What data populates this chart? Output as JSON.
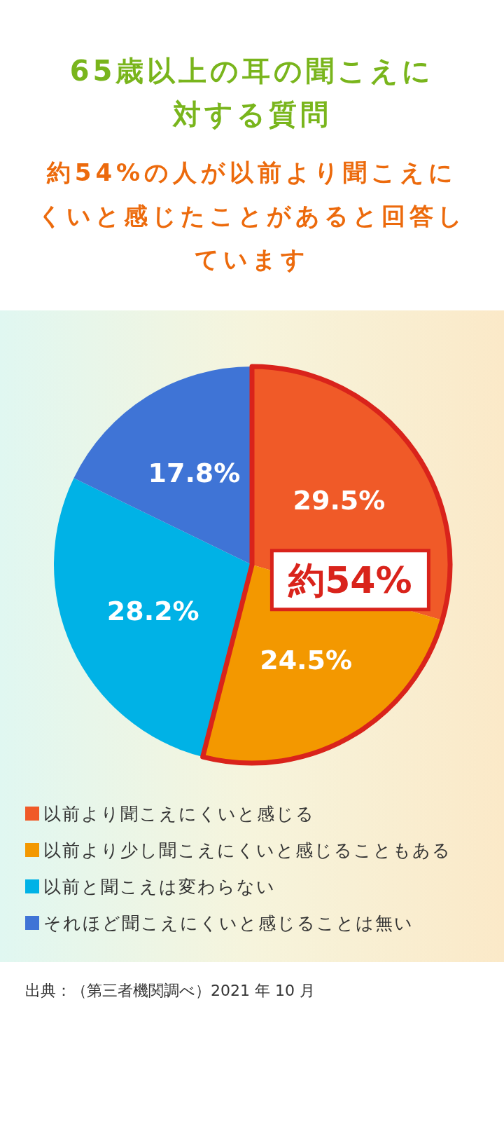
{
  "chart_data": {
    "type": "pie",
    "title": "65歳以上の耳の聞こえに対する質問",
    "subtitle": "約54%の人が以前より聞こえにくいと感じたことがあると回答しています",
    "categories": [
      "以前より聞こえにくいと感じる",
      "以前より少し聞こえにくいと感じることもある",
      "以前と聞こえは変わらない",
      "それほど聞こえにくいと感じることは無い"
    ],
    "values": [
      29.5,
      24.5,
      28.2,
      17.8
    ],
    "colors": [
      "#f05a28",
      "#f39800",
      "#00b2e6",
      "#3f74d6"
    ],
    "value_labels": [
      "29.5%",
      "24.5%",
      "28.2%",
      "17.8%"
    ],
    "legend": "bottom",
    "annotations": [
      "約54%",
      "出典：（第三者機関調べ）2021 年 10 月"
    ]
  }
}
